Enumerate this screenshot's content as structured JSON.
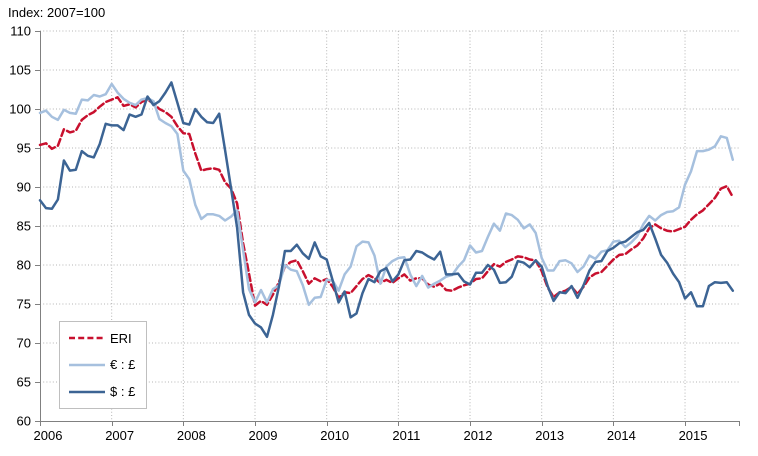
{
  "title": "Index: 2007=100",
  "colors": {
    "axis": "#808080",
    "grid": "#b5b5b5",
    "text": "#000000",
    "background": "#ffffff",
    "legend_border": "#bfbfbf"
  },
  "chart_data": {
    "type": "line",
    "title": "Index: 2007=100",
    "x_unit": "month",
    "x_start": "2006-01",
    "x_end": "2015-09",
    "x_tick_labels": [
      "2006",
      "2007",
      "2008",
      "2009",
      "2010",
      "2011",
      "2012",
      "2013",
      "2014",
      "2015"
    ],
    "y_ticks": [
      60,
      65,
      70,
      75,
      80,
      85,
      90,
      95,
      100,
      105,
      110
    ],
    "ylim": [
      60,
      110
    ],
    "grid": "dotted",
    "legend_position": "inside-bottom-left",
    "series": [
      {
        "name": "ERI",
        "color": "#c8102e",
        "style": "dashed",
        "values": [
          95.4,
          95.6,
          94.9,
          95.3,
          97.4,
          97.0,
          97.2,
          98.6,
          99.2,
          99.6,
          100.3,
          100.9,
          101.2,
          101.5,
          100.4,
          100.6,
          100.2,
          100.9,
          101.2,
          100.7,
          100.0,
          99.6,
          99.0,
          97.8,
          96.9,
          96.8,
          94.3,
          92.1,
          92.3,
          92.4,
          92.2,
          90.6,
          89.8,
          87.9,
          82.8,
          78.9,
          74.8,
          75.4,
          74.9,
          76.2,
          77.8,
          79.8,
          80.4,
          80.6,
          79.2,
          77.6,
          78.3,
          77.9,
          78.2,
          77.2,
          75.8,
          76.5,
          76.4,
          77.3,
          78.2,
          78.7,
          78.3,
          77.7,
          78.1,
          77.7,
          78.3,
          78.8,
          78.0,
          78.3,
          78.3,
          77.5,
          77.2,
          77.6,
          76.8,
          76.7,
          77.1,
          77.4,
          77.6,
          78.2,
          78.3,
          79.2,
          80.1,
          79.8,
          80.4,
          80.7,
          81.1,
          81.0,
          80.7,
          80.6,
          79.2,
          77.1,
          75.9,
          76.5,
          76.7,
          77.2,
          76.3,
          77.2,
          78.4,
          78.9,
          79.1,
          79.9,
          80.7,
          81.3,
          81.4,
          82.0,
          82.5,
          83.4,
          84.7,
          85.2,
          84.7,
          84.4,
          84.3,
          84.6,
          84.9,
          85.8,
          86.5,
          87.0,
          87.8,
          88.6,
          89.8,
          90.1,
          88.7
        ]
      },
      {
        "name": "€ : £",
        "color": "#a6c0de",
        "style": "solid",
        "values": [
          99.5,
          99.8,
          99.0,
          98.6,
          99.9,
          99.5,
          99.4,
          101.2,
          101.1,
          101.8,
          101.6,
          101.9,
          103.2,
          102.1,
          101.3,
          100.8,
          100.5,
          101.2,
          101.4,
          101.0,
          98.7,
          98.2,
          97.8,
          96.8,
          92.1,
          91.0,
          87.7,
          85.9,
          86.5,
          86.5,
          86.3,
          85.7,
          86.2,
          87.0,
          81.9,
          76.9,
          75.2,
          76.8,
          75.2,
          76.9,
          77.4,
          80.0,
          79.4,
          79.2,
          77.4,
          74.9,
          75.8,
          75.9,
          78.1,
          78.0,
          76.7,
          78.8,
          79.8,
          82.4,
          83.0,
          82.9,
          81.2,
          77.6,
          79.8,
          80.5,
          80.9,
          81.0,
          78.8,
          77.3,
          78.6,
          77.1,
          77.6,
          78.0,
          78.5,
          78.7,
          79.8,
          80.6,
          82.5,
          81.6,
          81.8,
          83.6,
          85.3,
          84.4,
          86.6,
          86.4,
          85.8,
          84.7,
          85.2,
          84.1,
          80.9,
          79.3,
          79.3,
          80.5,
          80.6,
          80.2,
          79.1,
          79.8,
          81.2,
          80.8,
          81.7,
          81.9,
          83.0,
          83.1,
          82.3,
          82.9,
          83.7,
          85.2,
          86.3,
          85.7,
          86.4,
          86.8,
          86.9,
          87.4,
          90.3,
          92.0,
          94.6,
          94.6,
          94.8,
          95.2,
          96.5,
          96.3,
          93.5
        ]
      },
      {
        "name": "$ : £",
        "color": "#3c6494",
        "style": "solid",
        "values": [
          88.3,
          87.3,
          87.2,
          88.4,
          93.4,
          92.1,
          92.2,
          94.6,
          94.0,
          93.8,
          95.5,
          98.1,
          97.9,
          97.9,
          97.3,
          99.3,
          99.0,
          99.3,
          101.6,
          100.5,
          101.0,
          102.1,
          103.4,
          100.8,
          98.2,
          98.0,
          100.0,
          99.0,
          98.3,
          98.2,
          99.4,
          94.7,
          89.8,
          84.8,
          76.5,
          73.6,
          72.5,
          72.0,
          70.8,
          73.6,
          77.2,
          81.8,
          81.8,
          82.6,
          81.5,
          80.8,
          82.9,
          81.1,
          80.7,
          78.0,
          75.2,
          76.6,
          73.3,
          73.8,
          76.4,
          78.2,
          77.8,
          79.2,
          79.6,
          77.9,
          78.8,
          80.6,
          80.7,
          81.8,
          81.6,
          81.1,
          80.7,
          81.7,
          78.8,
          78.8,
          78.9,
          77.9,
          77.5,
          79.0,
          79.0,
          80.0,
          79.4,
          77.7,
          77.8,
          78.5,
          80.5,
          80.3,
          79.7,
          80.6,
          79.8,
          77.3,
          75.4,
          76.5,
          76.4,
          77.3,
          75.8,
          77.4,
          79.3,
          80.4,
          80.5,
          81.8,
          82.2,
          82.8,
          83.0,
          83.6,
          84.2,
          84.5,
          85.4,
          83.4,
          81.3,
          80.3,
          78.9,
          77.8,
          75.7,
          76.5,
          74.7,
          74.7,
          77.3,
          77.8,
          77.7,
          77.8,
          76.7
        ]
      }
    ]
  }
}
